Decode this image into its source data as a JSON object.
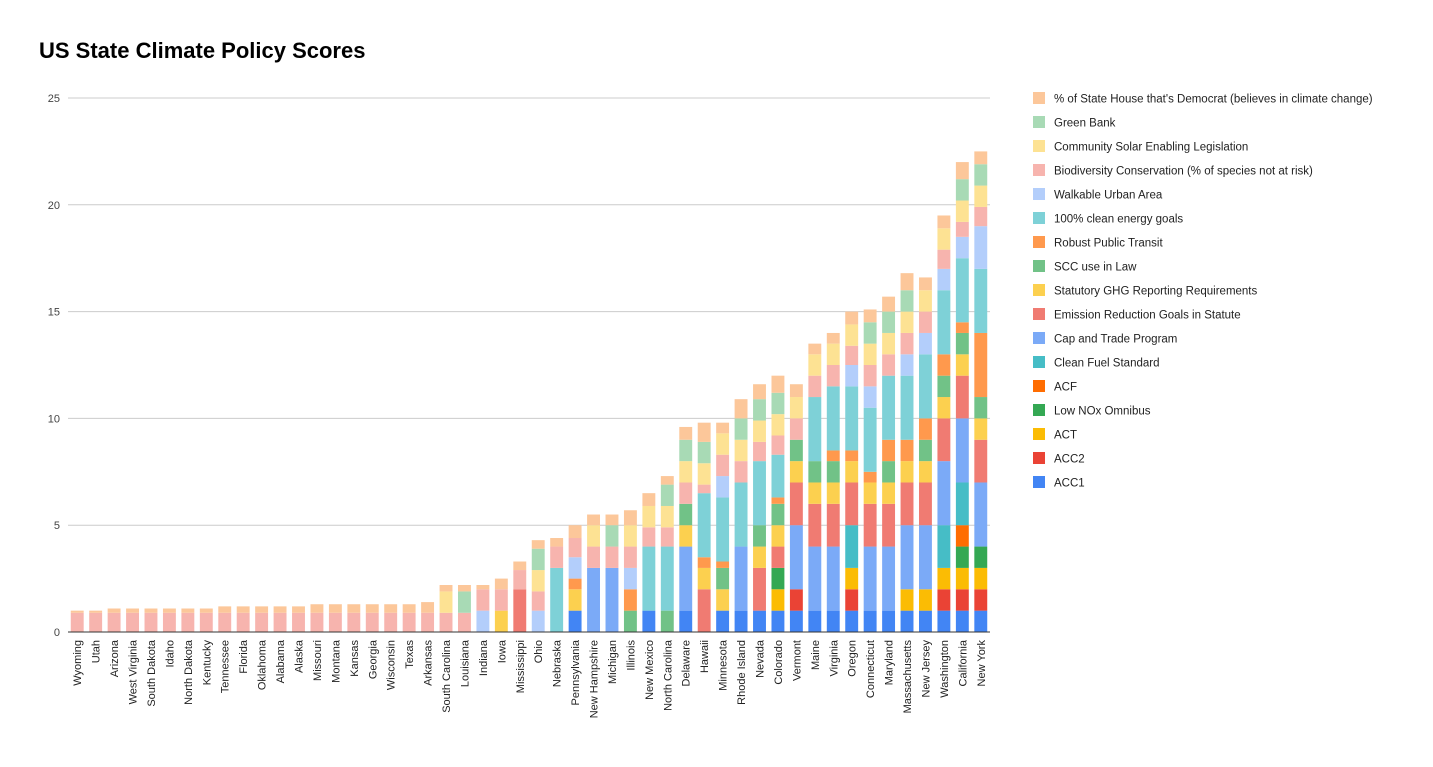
{
  "chart_data": {
    "type": "bar",
    "stacked": true,
    "title": "US State Climate Policy Scores",
    "xlabel": "",
    "ylabel": "",
    "ylim": [
      0,
      25
    ],
    "yticks": [
      0,
      5,
      10,
      15,
      20,
      25
    ],
    "grid": true,
    "legend": "right",
    "categories": [
      "Wyoming",
      "Utah",
      "Arizona",
      "West Virginia",
      "South Dakota",
      "Idaho",
      "North Dakota",
      "Kentucky",
      "Tennessee",
      "Florida",
      "Oklahoma",
      "Alabama",
      "Alaska",
      "Missouri",
      "Montana",
      "Kansas",
      "Georgia",
      "Wisconsin",
      "Texas",
      "Arkansas",
      "South Carolina",
      "Louisiana",
      "Indiana",
      "Iowa",
      "Mississippi",
      "Ohio",
      "Nebraska",
      "Pennsylvania",
      "New Hampshire",
      "Michigan",
      "Illinois",
      "New Mexico",
      "North Carolina",
      "Delaware",
      "Hawaii",
      "Minnesota",
      "Rhode Island",
      "Nevada",
      "Colorado",
      "Vermont",
      "Maine",
      "Virginia",
      "Oregon",
      "Connecticut",
      "Maryland",
      "Massachusetts",
      "New Jersey",
      "Washington",
      "California",
      "New York"
    ],
    "series": [
      {
        "name": "ACC1",
        "color": "#4285F4",
        "values": [
          0,
          0,
          0,
          0,
          0,
          0,
          0,
          0,
          0,
          0,
          0,
          0,
          0,
          0,
          0,
          0,
          0,
          0,
          0,
          0,
          0,
          0,
          0,
          0,
          0,
          0,
          0,
          1,
          0,
          0,
          0,
          1,
          0,
          1,
          0,
          1,
          1,
          1,
          1,
          1,
          1,
          1,
          1,
          1,
          1,
          1,
          1,
          1,
          1,
          1
        ]
      },
      {
        "name": "ACC2",
        "color": "#EA4335",
        "values": [
          0,
          0,
          0,
          0,
          0,
          0,
          0,
          0,
          0,
          0,
          0,
          0,
          0,
          0,
          0,
          0,
          0,
          0,
          0,
          0,
          0,
          0,
          0,
          0,
          0,
          0,
          0,
          0,
          0,
          0,
          0,
          0,
          0,
          0,
          0,
          0,
          0,
          0,
          0,
          1,
          0,
          0,
          1,
          0,
          0,
          0,
          0,
          1,
          1,
          1
        ]
      },
      {
        "name": "ACT",
        "color": "#FBBC04",
        "values": [
          0,
          0,
          0,
          0,
          0,
          0,
          0,
          0,
          0,
          0,
          0,
          0,
          0,
          0,
          0,
          0,
          0,
          0,
          0,
          0,
          0,
          0,
          0,
          0,
          0,
          0,
          0,
          0,
          0,
          0,
          0,
          0,
          0,
          0,
          0,
          0,
          0,
          0,
          1,
          0,
          0,
          0,
          1,
          0,
          0,
          1,
          1,
          1,
          1,
          1
        ]
      },
      {
        "name": "Low NOx Omnibus",
        "color": "#34A853",
        "values": [
          0,
          0,
          0,
          0,
          0,
          0,
          0,
          0,
          0,
          0,
          0,
          0,
          0,
          0,
          0,
          0,
          0,
          0,
          0,
          0,
          0,
          0,
          0,
          0,
          0,
          0,
          0,
          0,
          0,
          0,
          0,
          0,
          0,
          0,
          0,
          0,
          0,
          0,
          1,
          0,
          0,
          0,
          0,
          0,
          0,
          0,
          0,
          0,
          1,
          1
        ]
      },
      {
        "name": "ACF",
        "color": "#FF6D01",
        "values": [
          0,
          0,
          0,
          0,
          0,
          0,
          0,
          0,
          0,
          0,
          0,
          0,
          0,
          0,
          0,
          0,
          0,
          0,
          0,
          0,
          0,
          0,
          0,
          0,
          0,
          0,
          0,
          0,
          0,
          0,
          0,
          0,
          0,
          0,
          0,
          0,
          0,
          0,
          0,
          0,
          0,
          0,
          0,
          0,
          0,
          0,
          0,
          0,
          1,
          0
        ]
      },
      {
        "name": "Clean Fuel Standard",
        "color": "#46BDC6",
        "values": [
          0,
          0,
          0,
          0,
          0,
          0,
          0,
          0,
          0,
          0,
          0,
          0,
          0,
          0,
          0,
          0,
          0,
          0,
          0,
          0,
          0,
          0,
          0,
          0,
          0,
          0,
          0,
          0,
          0,
          0,
          0,
          0,
          0,
          0,
          0,
          0,
          0,
          0,
          0,
          0,
          0,
          0,
          2,
          0,
          0,
          0,
          0,
          2,
          2,
          0
        ]
      },
      {
        "name": "Cap and Trade Program",
        "color": "#7BAAF7",
        "values": [
          0,
          0,
          0,
          0,
          0,
          0,
          0,
          0,
          0,
          0,
          0,
          0,
          0,
          0,
          0,
          0,
          0,
          0,
          0,
          0,
          0,
          0,
          0,
          0,
          0,
          0,
          0,
          0,
          3,
          3,
          0,
          0,
          0,
          3,
          0,
          0,
          3,
          0,
          0,
          3,
          3,
          3,
          0,
          3,
          3,
          3,
          3,
          3,
          3,
          3
        ]
      },
      {
        "name": "Emission Reduction Goals in Statute",
        "color": "#F07B72",
        "values": [
          0,
          0,
          0,
          0,
          0,
          0,
          0,
          0,
          0,
          0,
          0,
          0,
          0,
          0,
          0,
          0,
          0,
          0,
          0,
          0,
          0,
          0,
          0,
          0,
          2,
          0,
          0,
          0,
          0,
          0,
          0,
          0,
          0,
          0,
          2,
          0,
          0,
          2,
          1,
          2,
          2,
          2,
          2,
          2,
          2,
          2,
          2,
          2,
          2,
          2
        ]
      },
      {
        "name": "Statutory GHG Reporting Requirements",
        "color": "#FCD04F",
        "values": [
          0,
          0,
          0,
          0,
          0,
          0,
          0,
          0,
          0,
          0,
          0,
          0,
          0,
          0,
          0,
          0,
          0,
          0,
          0,
          0,
          0,
          0,
          0,
          1,
          0,
          0,
          0,
          1,
          0,
          0,
          0,
          0,
          0,
          1,
          1,
          1,
          0,
          1,
          1,
          1,
          1,
          1,
          1,
          1,
          1,
          1,
          1,
          1,
          1,
          1
        ]
      },
      {
        "name": "SCC use in Law",
        "color": "#71C287",
        "values": [
          0,
          0,
          0,
          0,
          0,
          0,
          0,
          0,
          0,
          0,
          0,
          0,
          0,
          0,
          0,
          0,
          0,
          0,
          0,
          0,
          0,
          0,
          0,
          0,
          0,
          0,
          0,
          0,
          0,
          0,
          1,
          0,
          1,
          1,
          0,
          1,
          0,
          1,
          1,
          1,
          1,
          1,
          0,
          0,
          1,
          0,
          1,
          1,
          1,
          1
        ]
      },
      {
        "name": "Robust Public Transit",
        "color": "#FF994D",
        "values": [
          0,
          0,
          0,
          0,
          0,
          0,
          0,
          0,
          0,
          0,
          0,
          0,
          0,
          0,
          0,
          0,
          0,
          0,
          0,
          0,
          0,
          0,
          0,
          0,
          0,
          0,
          0,
          0.5,
          0,
          0,
          1,
          0,
          0,
          0,
          0.5,
          0.3,
          0,
          0,
          0.3,
          0,
          0,
          0.5,
          0.5,
          0.5,
          1,
          1,
          1,
          1,
          0.5,
          3
        ]
      },
      {
        "name": "100% clean energy goals",
        "color": "#7ED1D7",
        "values": [
          0,
          0,
          0,
          0,
          0,
          0,
          0,
          0,
          0,
          0,
          0,
          0,
          0,
          0,
          0,
          0,
          0,
          0,
          0,
          0,
          0,
          0,
          0,
          0,
          0,
          0,
          3,
          0,
          0,
          0,
          0,
          3,
          3,
          0,
          3,
          3,
          3,
          3,
          2,
          0,
          3,
          3,
          3,
          3,
          3,
          3,
          3,
          3,
          3,
          3
        ]
      },
      {
        "name": "Walkable Urban Area",
        "color": "#B3CEFB",
        "values": [
          0,
          0,
          0,
          0,
          0,
          0,
          0,
          0,
          0,
          0,
          0,
          0,
          0,
          0,
          0,
          0,
          0,
          0,
          0,
          0,
          0,
          0,
          1,
          0,
          0,
          1,
          0,
          1,
          0,
          0,
          1,
          0,
          0,
          0,
          0,
          1,
          0,
          0,
          0,
          0,
          0,
          0,
          1,
          1,
          0,
          1,
          1,
          1,
          1,
          2
        ]
      },
      {
        "name": "Biodiversity Conservation (% of species not at risk)",
        "color": "#F7B4AE",
        "values": [
          0.9,
          0.9,
          0.9,
          0.9,
          0.9,
          0.9,
          0.9,
          0.9,
          0.9,
          0.9,
          0.9,
          0.9,
          0.9,
          0.9,
          0.9,
          0.9,
          0.9,
          0.9,
          0.9,
          0.9,
          0.9,
          0.9,
          1,
          1,
          0.9,
          0.9,
          1,
          0.9,
          1,
          1,
          1,
          0.9,
          0.9,
          1,
          0.4,
          1,
          1,
          0.9,
          0.9,
          1,
          1,
          1,
          0.9,
          1,
          1,
          1,
          1,
          0.9,
          0.7,
          0.9
        ]
      },
      {
        "name": "Community Solar Enabling Legislation",
        "color": "#FDE293",
        "values": [
          0,
          0,
          0,
          0,
          0,
          0,
          0,
          0,
          0,
          0,
          0,
          0,
          0,
          0,
          0,
          0,
          0,
          0,
          0,
          0,
          1,
          0,
          0,
          0,
          0,
          1,
          0,
          0,
          1,
          0,
          1,
          1,
          1,
          1,
          1,
          1,
          1,
          1,
          1,
          1,
          1,
          1,
          1,
          1,
          1,
          1,
          1,
          1,
          1,
          1
        ]
      },
      {
        "name": "Green Bank",
        "color": "#A8DAB5",
        "values": [
          0,
          0,
          0,
          0,
          0,
          0,
          0,
          0,
          0,
          0,
          0,
          0,
          0,
          0,
          0,
          0,
          0,
          0,
          0,
          0,
          0,
          1,
          0,
          0,
          0,
          1,
          0,
          0,
          0,
          1,
          0,
          0,
          1,
          1,
          1,
          0,
          1,
          1,
          1,
          0,
          0,
          0,
          0,
          1,
          1,
          1,
          0,
          0,
          1,
          1
        ]
      },
      {
        "name": "% of State House that's Democrat (believes in climate change)",
        "color": "#FCC79A",
        "values": [
          0.1,
          0.1,
          0.2,
          0.2,
          0.2,
          0.2,
          0.2,
          0.2,
          0.3,
          0.3,
          0.3,
          0.3,
          0.3,
          0.4,
          0.4,
          0.4,
          0.4,
          0.4,
          0.4,
          0.5,
          0.3,
          0.3,
          0.2,
          0.5,
          0.4,
          0.4,
          0.4,
          0.6,
          0.5,
          0.5,
          0.7,
          0.6,
          0.4,
          0.6,
          0.9,
          0.5,
          0.9,
          0.7,
          0.8,
          0.6,
          0.5,
          0.5,
          0.6,
          0.6,
          0.7,
          0.8,
          0.6,
          0.6,
          0.8,
          0.6
        ]
      }
    ]
  }
}
